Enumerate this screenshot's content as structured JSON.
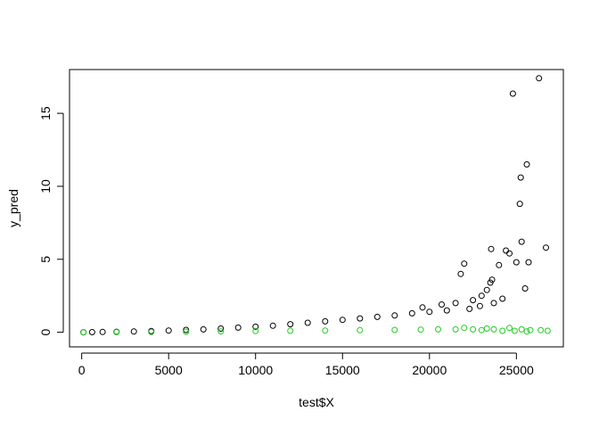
{
  "chart_data": {
    "type": "scatter",
    "title": "",
    "xlabel": "test$X",
    "ylabel": "y_pred",
    "xlim": [
      -700,
      27700
    ],
    "ylim": [
      -1.0,
      18.0
    ],
    "xticks": [
      0,
      5000,
      10000,
      15000,
      20000,
      25000
    ],
    "yticks": [
      0,
      5,
      10,
      15
    ],
    "grid": false,
    "legend": "none",
    "colors": {
      "series_black": "#000000",
      "series_green": "#22cc22"
    },
    "series": [
      {
        "color": "#000000",
        "points": [
          [
            100,
            0.0
          ],
          [
            600,
            0.01
          ],
          [
            1200,
            0.02
          ],
          [
            2000,
            0.03
          ],
          [
            3000,
            0.05
          ],
          [
            4000,
            0.08
          ],
          [
            5000,
            0.12
          ],
          [
            6000,
            0.16
          ],
          [
            7000,
            0.2
          ],
          [
            8000,
            0.25
          ],
          [
            9000,
            0.32
          ],
          [
            10000,
            0.38
          ],
          [
            11000,
            0.45
          ],
          [
            12000,
            0.55
          ],
          [
            13000,
            0.65
          ],
          [
            14000,
            0.75
          ],
          [
            15000,
            0.85
          ],
          [
            16000,
            0.95
          ],
          [
            17000,
            1.05
          ],
          [
            18000,
            1.15
          ],
          [
            19000,
            1.3
          ],
          [
            19600,
            1.7
          ],
          [
            20000,
            1.4
          ],
          [
            20700,
            1.9
          ],
          [
            21000,
            1.5
          ],
          [
            21500,
            2.0
          ],
          [
            21800,
            4.0
          ],
          [
            22000,
            4.7
          ],
          [
            22300,
            1.6
          ],
          [
            22500,
            2.2
          ],
          [
            22900,
            1.8
          ],
          [
            23000,
            2.5
          ],
          [
            23300,
            2.9
          ],
          [
            23500,
            3.4
          ],
          [
            23550,
            5.7
          ],
          [
            23600,
            3.6
          ],
          [
            23700,
            2.0
          ],
          [
            24000,
            4.6
          ],
          [
            24200,
            2.3
          ],
          [
            24400,
            5.6
          ],
          [
            24600,
            5.4
          ],
          [
            24800,
            16.35
          ],
          [
            25000,
            4.8
          ],
          [
            25200,
            8.8
          ],
          [
            25250,
            10.6
          ],
          [
            25300,
            6.2
          ],
          [
            25500,
            3.0
          ],
          [
            25600,
            11.5
          ],
          [
            25700,
            4.8
          ],
          [
            26300,
            17.4
          ],
          [
            26700,
            5.8
          ]
        ]
      },
      {
        "color": "#22cc22",
        "points": [
          [
            100,
            0.0
          ],
          [
            2000,
            0.01
          ],
          [
            4000,
            0.02
          ],
          [
            6000,
            0.04
          ],
          [
            8000,
            0.06
          ],
          [
            10000,
            0.08
          ],
          [
            12000,
            0.1
          ],
          [
            14000,
            0.12
          ],
          [
            16000,
            0.14
          ],
          [
            18000,
            0.16
          ],
          [
            19500,
            0.18
          ],
          [
            20500,
            0.2
          ],
          [
            21500,
            0.2
          ],
          [
            22000,
            0.3
          ],
          [
            22500,
            0.2
          ],
          [
            23000,
            0.15
          ],
          [
            23300,
            0.25
          ],
          [
            23700,
            0.2
          ],
          [
            24200,
            0.1
          ],
          [
            24600,
            0.3
          ],
          [
            24900,
            0.1
          ],
          [
            25300,
            0.2
          ],
          [
            25600,
            0.05
          ],
          [
            25800,
            0.15
          ],
          [
            26400,
            0.15
          ],
          [
            26800,
            0.1
          ]
        ]
      }
    ]
  }
}
